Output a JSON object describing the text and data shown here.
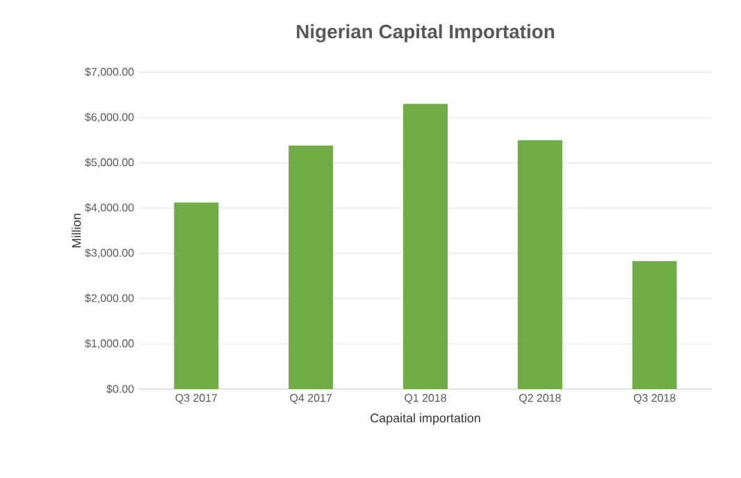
{
  "chart_data": {
    "type": "bar",
    "title": "Nigerian Capital Importation",
    "xlabel": "Capaital importation",
    "ylabel": "Million",
    "categories": [
      "Q3 2017",
      "Q4 2017",
      "Q1 2018",
      "Q2 2018",
      "Q3 2018"
    ],
    "values": [
      4120,
      5380,
      6300,
      5500,
      2830
    ],
    "color": "#70ad47",
    "ylim": [
      0,
      7000
    ],
    "yticks": [
      {
        "value": 0,
        "label": "$0.00"
      },
      {
        "value": 1000,
        "label": "$1,000.00"
      },
      {
        "value": 2000,
        "label": "$2,000.00"
      },
      {
        "value": 3000,
        "label": "$3,000.00"
      },
      {
        "value": 4000,
        "label": "$4,000.00"
      },
      {
        "value": 5000,
        "label": "$5,000.00"
      },
      {
        "value": 6000,
        "label": "$6,000.00"
      },
      {
        "value": 7000,
        "label": "$7,000.00"
      }
    ],
    "grid": "y"
  }
}
